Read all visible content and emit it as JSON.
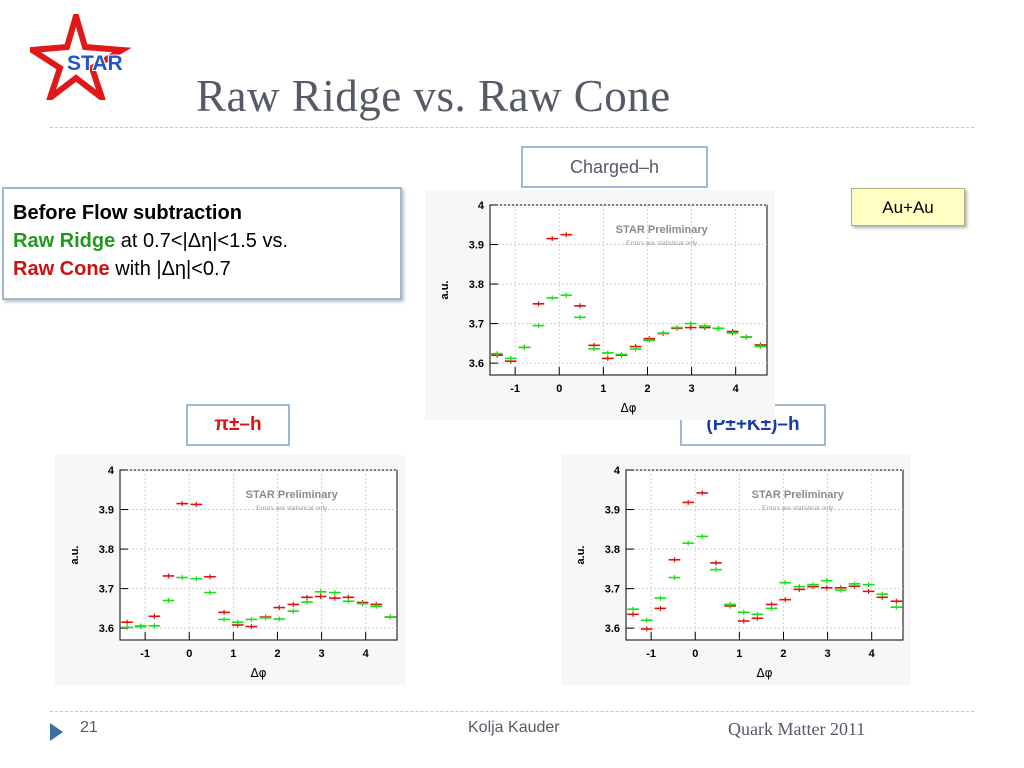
{
  "logo": {
    "text": "STAR"
  },
  "title": "Raw Ridge vs. Raw Cone",
  "info_box": {
    "line1": "Before Flow subtraction",
    "ridge_label": "Raw Ridge",
    "ridge_rest": " at 0.7<|Δη|<1.5 vs.",
    "cone_label": "Raw Cone",
    "cone_rest": " with |Δη|<0.7"
  },
  "collision_label": "Au+Au",
  "colors": {
    "ridge": "#e01010",
    "cone": "#18e018",
    "title": "#555a66",
    "label_blue": "#1a3aa8"
  },
  "chart_data": [
    {
      "type": "scatter",
      "panel_label": "Charged–h",
      "annotation": "STAR Preliminary",
      "annotation_sub": "Errors are statistical only",
      "xlabel": "Δφ",
      "ylabel": "a.u.",
      "xlim": [
        -1.57,
        4.71
      ],
      "ylim": [
        3.57,
        4.0
      ],
      "xticks": [
        "-1",
        "0",
        "1",
        "2",
        "3",
        "4"
      ],
      "yticks": [
        "3.6",
        "3.7",
        "3.8",
        "3.9",
        "4"
      ],
      "grid": true,
      "x": [
        -1.41,
        -1.1,
        -0.79,
        -0.47,
        -0.16,
        0.16,
        0.47,
        0.79,
        1.1,
        1.41,
        1.73,
        2.04,
        2.36,
        2.67,
        2.98,
        3.3,
        3.61,
        3.93,
        4.24,
        4.56
      ],
      "series": [
        {
          "color": "ridge",
          "values": [
            3.62,
            3.605,
            3.64,
            3.75,
            3.915,
            3.925,
            3.745,
            3.645,
            3.612,
            3.62,
            3.642,
            3.662,
            3.675,
            3.688,
            3.69,
            3.69,
            3.688,
            3.68,
            3.666,
            3.646
          ]
        },
        {
          "color": "cone",
          "values": [
            3.624,
            3.612,
            3.64,
            3.695,
            3.765,
            3.772,
            3.716,
            3.636,
            3.626,
            3.622,
            3.636,
            3.658,
            3.676,
            3.69,
            3.7,
            3.694,
            3.688,
            3.676,
            3.666,
            3.642
          ]
        }
      ]
    },
    {
      "type": "scatter",
      "panel_label": "π±–h",
      "annotation": "STAR Preliminary",
      "annotation_sub": "Errors are statistical only",
      "xlabel": "Δφ",
      "ylabel": "a.u.",
      "xlim": [
        -1.57,
        4.71
      ],
      "ylim": [
        3.57,
        4.0
      ],
      "xticks": [
        "-1",
        "0",
        "1",
        "2",
        "3",
        "4"
      ],
      "yticks": [
        "3.6",
        "3.7",
        "3.8",
        "3.9",
        "4"
      ],
      "grid": true,
      "x": [
        -1.41,
        -1.1,
        -0.79,
        -0.47,
        -0.16,
        0.16,
        0.47,
        0.79,
        1.1,
        1.41,
        1.73,
        2.04,
        2.36,
        2.67,
        2.98,
        3.3,
        3.61,
        3.93,
        4.24,
        4.56
      ],
      "series": [
        {
          "color": "ridge",
          "values": [
            3.615,
            3.605,
            3.63,
            3.732,
            3.915,
            3.913,
            3.73,
            3.64,
            3.608,
            3.604,
            3.628,
            3.652,
            3.66,
            3.678,
            3.68,
            3.676,
            3.678,
            3.665,
            3.66,
            3.628
          ]
        },
        {
          "color": "cone",
          "values": [
            3.602,
            3.604,
            3.606,
            3.67,
            3.728,
            3.725,
            3.69,
            3.622,
            3.615,
            3.622,
            3.626,
            3.623,
            3.643,
            3.666,
            3.692,
            3.69,
            3.668,
            3.662,
            3.655,
            3.628
          ]
        }
      ]
    },
    {
      "type": "scatter",
      "panel_label": "(P±+K±)–h",
      "annotation": "STAR Preliminary",
      "annotation_sub": "Errors are statistical only",
      "xlabel": "Δφ",
      "ylabel": "a.u.",
      "xlim": [
        -1.57,
        4.71
      ],
      "ylim": [
        3.57,
        4.0
      ],
      "xticks": [
        "-1",
        "0",
        "1",
        "2",
        "3",
        "4"
      ],
      "yticks": [
        "3.6",
        "3.7",
        "3.8",
        "3.9",
        "4"
      ],
      "grid": true,
      "x": [
        -1.41,
        -1.1,
        -0.79,
        -0.47,
        -0.16,
        0.16,
        0.47,
        0.79,
        1.1,
        1.41,
        1.73,
        2.04,
        2.36,
        2.67,
        2.98,
        3.3,
        3.61,
        3.93,
        4.24,
        4.56
      ],
      "series": [
        {
          "color": "ridge",
          "values": [
            3.635,
            3.598,
            3.65,
            3.773,
            3.918,
            3.942,
            3.765,
            3.656,
            3.618,
            3.625,
            3.66,
            3.672,
            3.698,
            3.705,
            3.702,
            3.702,
            3.706,
            3.693,
            3.678,
            3.668
          ]
        },
        {
          "color": "cone",
          "values": [
            3.648,
            3.62,
            3.676,
            3.728,
            3.815,
            3.832,
            3.748,
            3.66,
            3.64,
            3.635,
            3.65,
            3.715,
            3.705,
            3.71,
            3.72,
            3.696,
            3.712,
            3.71,
            3.686,
            3.653
          ]
        }
      ]
    }
  ],
  "footer": {
    "page": "21",
    "author": "Kolja Kauder",
    "conference": "Quark Matter 2011"
  }
}
